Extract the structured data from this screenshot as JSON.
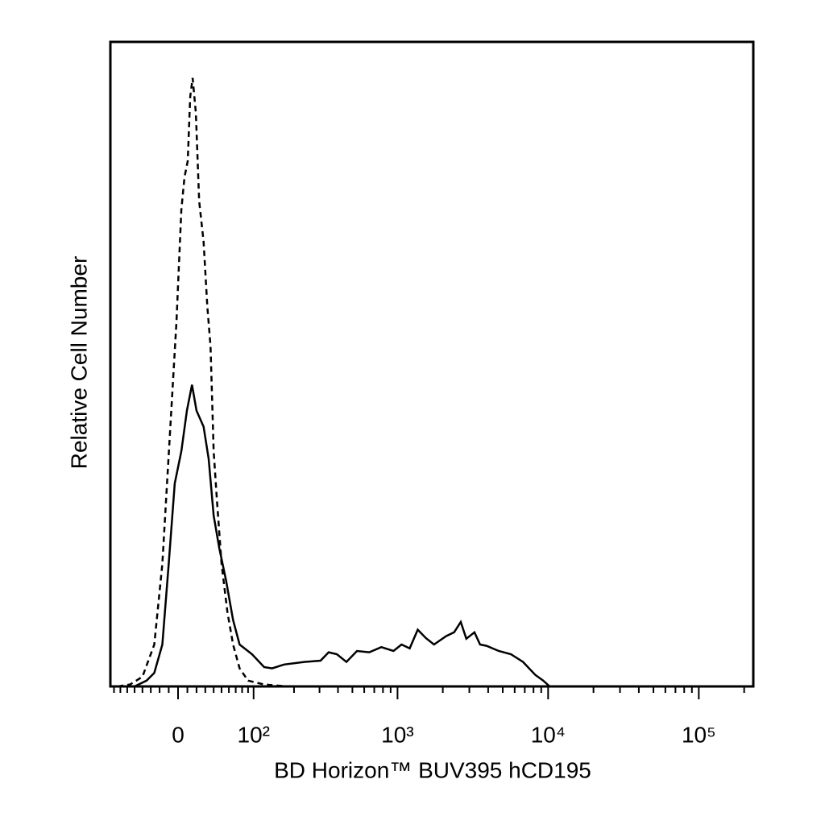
{
  "chart_data": {
    "type": "line",
    "x_label": "BD Horizon™ BUV395 hCD195",
    "y_label": "Relative Cell Number",
    "xscale": "asinh",
    "xscale_width": 70,
    "xlim": [
      -86,
      230000
    ],
    "ylim": [
      0,
      100
    ],
    "xticks": [
      0,
      {
        "value": 100,
        "label": "10²"
      },
      {
        "value": 1000,
        "label": "10³"
      },
      {
        "value": 10000,
        "label": "10⁴"
      },
      {
        "value": 100000,
        "label": "10⁵"
      }
    ],
    "xminorticks": [
      -80,
      -70,
      -60,
      -50,
      -40,
      -30,
      -20,
      -10,
      10,
      20,
      30,
      40,
      50,
      60,
      70,
      80,
      90,
      200,
      300,
      400,
      500,
      600,
      700,
      800,
      900,
      2000,
      3000,
      4000,
      5000,
      6000,
      7000,
      8000,
      9000,
      20000,
      30000,
      40000,
      50000,
      60000,
      70000,
      80000,
      90000,
      200000
    ],
    "series": [
      {
        "color": "#000000",
        "dash": "solid",
        "x": [
          -50,
          -35,
          -26,
          -17,
          -10,
          -3.5,
          3.5,
          9.5,
          15,
          20,
          28,
          34,
          40,
          47,
          56,
          66,
          76,
          97,
          121,
          139,
          170,
          236,
          305,
          346,
          393,
          456,
          537,
          648,
          780,
          940,
          1064,
          1205,
          1363,
          1544,
          1748,
          2104,
          2380,
          2630,
          2866,
          3245,
          3537,
          3905,
          4700,
          5660,
          6820,
          8210,
          9290,
          10250,
          12660,
          230000
        ],
        "values": [
          0,
          0.9,
          2.1,
          6.5,
          19,
          31.5,
          36.5,
          42.8,
          46.8,
          42.8,
          40.3,
          35.3,
          26.5,
          21.5,
          16.5,
          10.3,
          6.5,
          5,
          3,
          2.8,
          3.4,
          3.8,
          4,
          5.3,
          5,
          3.8,
          5.5,
          5.3,
          6.1,
          5.5,
          6.5,
          5.9,
          8.8,
          7.5,
          6.5,
          7.8,
          8.4,
          10,
          7.4,
          8.4,
          6.5,
          6.3,
          5.5,
          5,
          3.8,
          1.8,
          0.9,
          0,
          0,
          0
        ]
      },
      {
        "color": "#000000",
        "dash": "dashed",
        "x": [
          -74,
          -56,
          -40,
          -26,
          -17,
          -7.8,
          -1.7,
          3.5,
          6.9,
          10.4,
          13.1,
          15.7,
          19.3,
          23,
          28,
          32.3,
          36.2,
          40,
          44,
          50,
          58,
          66,
          76,
          90,
          121,
          182,
          230000
        ],
        "values": [
          0,
          0.3,
          1.5,
          6.5,
          19,
          41.5,
          56.5,
          74,
          79,
          81.5,
          91.5,
          94.4,
          89,
          75.3,
          69,
          59,
          52.8,
          36.5,
          29,
          19,
          11.5,
          6.5,
          2.8,
          0.9,
          0.3,
          0,
          0
        ]
      }
    ]
  }
}
